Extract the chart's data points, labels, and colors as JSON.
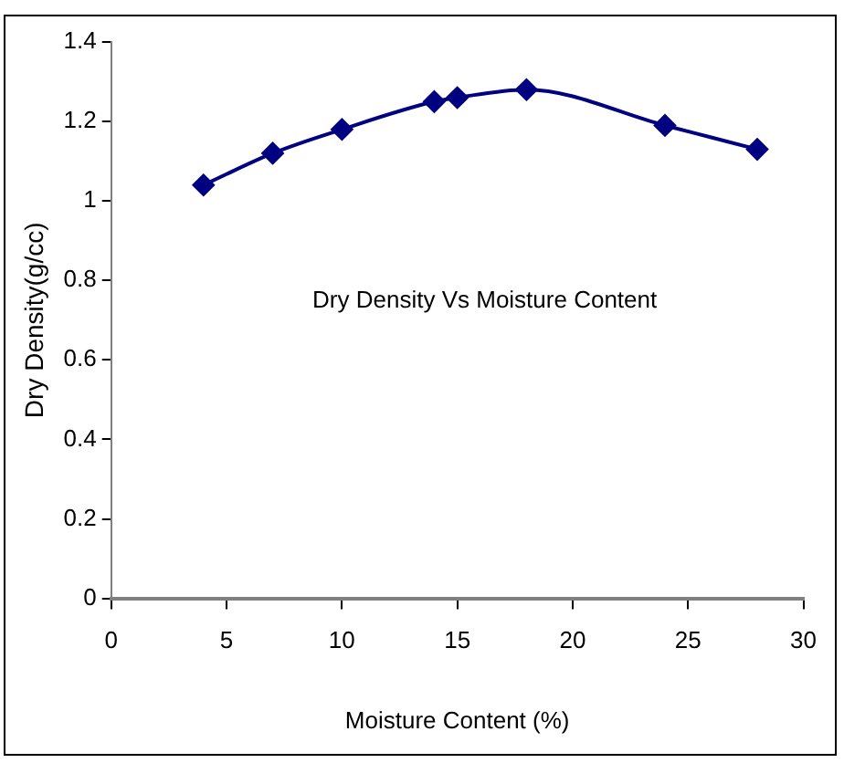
{
  "chart_data": {
    "type": "line",
    "title": "Dry Density Vs Moisture Content",
    "xlabel": "Moisture Content (%)",
    "ylabel": "Dry Density(g/cc)",
    "x": [
      4,
      7,
      10,
      14,
      15,
      18,
      24,
      28
    ],
    "series": [
      {
        "color": "#000080",
        "values": [
          1.04,
          1.12,
          1.18,
          1.25,
          1.26,
          1.28,
          1.19,
          1.13
        ]
      }
    ],
    "xlim": [
      0,
      30
    ],
    "xticks": [
      0,
      5,
      10,
      15,
      20,
      25,
      30
    ],
    "ylim": [
      0,
      1.4
    ],
    "yticks": [
      0,
      0.2,
      0.4,
      0.6,
      0.8,
      1,
      1.2,
      1.4
    ],
    "grid": false,
    "legend": false,
    "marker": "diamond",
    "line_style": "solid"
  }
}
